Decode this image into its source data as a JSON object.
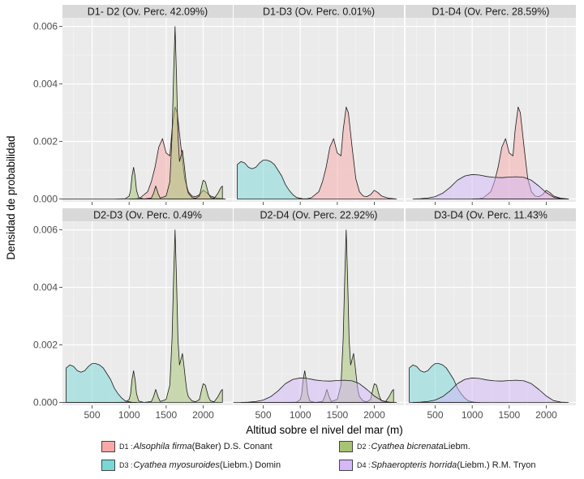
{
  "chart_data": {
    "type": "area",
    "x_axis_title": "Altitud sobre el nivel del mar (m)",
    "y_axis_title": "Densidad de probabilidad",
    "xlim": [
      100,
      2400
    ],
    "ylim": [
      -0.0001,
      0.0063
    ],
    "xticks": [
      500,
      1000,
      1500,
      2000
    ],
    "xtick_labels": [
      "500",
      "1000",
      "1500",
      "2000"
    ],
    "yticks": [
      0,
      0.002,
      0.004,
      0.006
    ],
    "ytick_labels": [
      "0.000",
      "0.002",
      "0.004",
      "0.006"
    ],
    "series": [
      {
        "id": "D1",
        "color": "#F8A8A8",
        "code": "D1 : ",
        "species": "Alsophila firma",
        "authority": " (Baker) D.S. Conant",
        "x": [
          1000,
          1100,
          1150,
          1250,
          1300,
          1350,
          1400,
          1450,
          1500,
          1550,
          1580,
          1620,
          1650,
          1700,
          1750,
          1800,
          1850,
          1900,
          1950,
          2000,
          2050,
          2100,
          2200,
          2300
        ],
        "y": [
          0,
          1e-05,
          4e-05,
          0.00025,
          0.0006,
          0.0011,
          0.0018,
          0.0021,
          0.0016,
          0.0015,
          0.0024,
          0.0032,
          0.003,
          0.0018,
          0.0007,
          0.00025,
          0.0001,
          8e-05,
          0.00015,
          0.0003,
          0.00022,
          0.0001,
          2e-05,
          0
        ]
      },
      {
        "id": "D2",
        "color": "#A8C472",
        "code": "D2 : ",
        "species": "Cyathea bicrenata",
        "authority": " Liebm.",
        "x": [
          100,
          800,
          950,
          1000,
          1020,
          1040,
          1060,
          1080,
          1100,
          1130,
          1200,
          1300,
          1330,
          1360,
          1390,
          1420,
          1500,
          1550,
          1580,
          1600,
          1620,
          1640,
          1660,
          1680,
          1700,
          1720,
          1740,
          1760,
          1780,
          1800,
          1850,
          1900,
          1950,
          1980,
          2000,
          2030,
          2050,
          2070,
          2100,
          2150,
          2200,
          2240,
          2260
        ],
        "y": [
          0,
          0,
          1e-05,
          0.0001,
          0.0003,
          0.0008,
          0.0011,
          0.0008,
          0.0003,
          5e-05,
          0,
          3e-05,
          0.0002,
          0.00045,
          0.0002,
          3e-05,
          0.0001,
          0.0006,
          0.0022,
          0.0043,
          0.006,
          0.0043,
          0.0022,
          0.0013,
          0.0015,
          0.0017,
          0.0013,
          0.0008,
          0.0004,
          0.0002,
          5e-05,
          2e-05,
          0.0001,
          0.00045,
          0.00065,
          0.0006,
          0.0004,
          0.0002,
          5e-05,
          2e-05,
          0.0002,
          0.0004,
          0.00045
        ]
      },
      {
        "id": "D3",
        "color": "#78D8D8",
        "code": "D3 : ",
        "species": "Cyathea myosuroides",
        "authority": " (Liebm.) Domin",
        "x": [
          150,
          200,
          250,
          300,
          350,
          400,
          450,
          500,
          550,
          600,
          650,
          700,
          750,
          800,
          850,
          900,
          950,
          1000,
          1050,
          1100
        ],
        "y": [
          0.0012,
          0.0013,
          0.00125,
          0.0011,
          0.00105,
          0.0011,
          0.00125,
          0.00135,
          0.00135,
          0.0013,
          0.0012,
          0.001,
          0.0008,
          0.0005,
          0.0003,
          0.00015,
          5e-05,
          2e-05,
          0,
          0
        ]
      },
      {
        "id": "D4",
        "color": "#D4B8F8",
        "code": "D4 : ",
        "species": "Sphaeropteris horrida",
        "authority": " (Liebm.) R.M. Tryon",
        "x": [
          200,
          300,
          400,
          500,
          600,
          700,
          800,
          900,
          1000,
          1100,
          1200,
          1300,
          1400,
          1500,
          1600,
          1700,
          1800,
          1900,
          2000,
          2100,
          2200,
          2300
        ],
        "y": [
          0,
          1e-05,
          3e-05,
          8e-05,
          0.0002,
          0.0004,
          0.00065,
          0.0008,
          0.00085,
          0.00083,
          0.00078,
          0.00075,
          0.00074,
          0.00076,
          0.00077,
          0.00075,
          0.00065,
          0.00045,
          0.00022,
          6e-05,
          1e-05,
          0
        ]
      }
    ],
    "panels": [
      {
        "title": "D1- D2 (Ov. Perc. 42.09%)",
        "a": 0,
        "b": 1
      },
      {
        "title": "D1-D3 (Ov. Perc. 0.01%)",
        "a": 0,
        "b": 2
      },
      {
        "title": "D1-D4 (Ov. Perc. 28.59%)",
        "a": 0,
        "b": 3
      },
      {
        "title": "D2-D3 (Ov. Perc. 0.49%",
        "a": 1,
        "b": 2
      },
      {
        "title": "D2-D4 (Ov. Perc. 22.92%)",
        "a": 1,
        "b": 3
      },
      {
        "title": "D3-D4 (Ov. Perc. 11.43%",
        "a": 2,
        "b": 3
      }
    ]
  }
}
